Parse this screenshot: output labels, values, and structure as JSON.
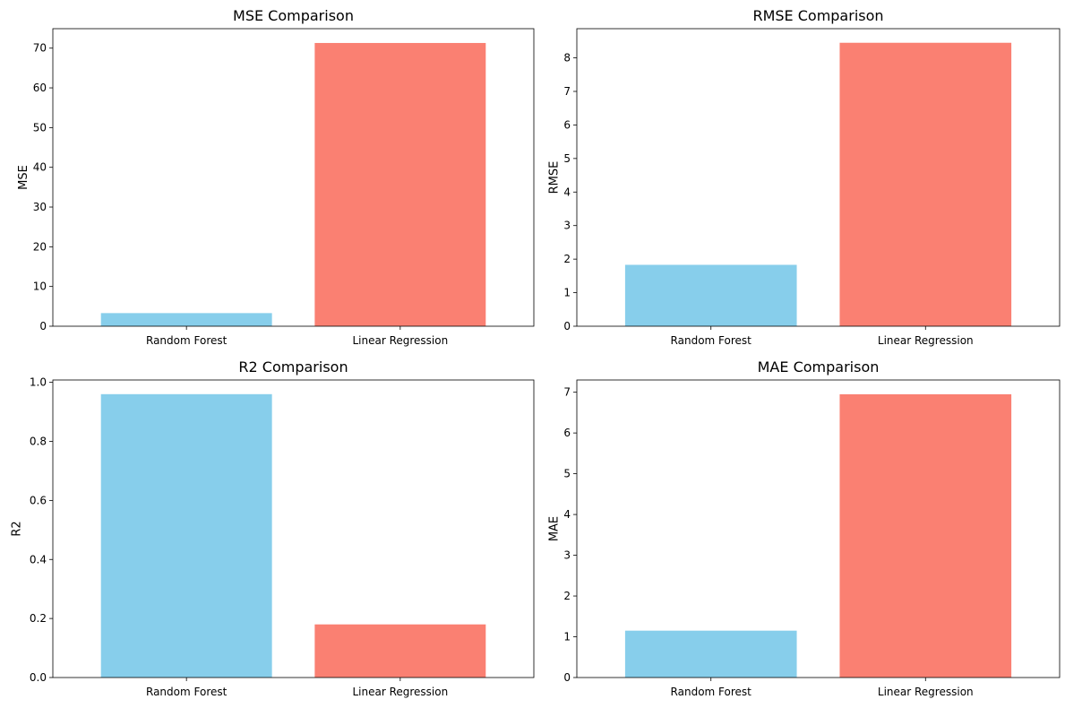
{
  "colors": {
    "random_forest": "#87CEEB",
    "linear_regression": "#FA8072"
  },
  "chart_data": [
    {
      "type": "bar",
      "title": "MSE Comparison",
      "xlabel": "",
      "ylabel": "MSE",
      "categories": [
        "Random Forest",
        "Linear Regression"
      ],
      "values": [
        3.3,
        71.3
      ],
      "ylim": [
        0,
        74.9
      ],
      "yticks": [
        0,
        10,
        20,
        30,
        40,
        50,
        60,
        70
      ],
      "grid": false
    },
    {
      "type": "bar",
      "title": "RMSE Comparison",
      "xlabel": "",
      "ylabel": "RMSE",
      "categories": [
        "Random Forest",
        "Linear Regression"
      ],
      "values": [
        1.83,
        8.45
      ],
      "ylim": [
        0,
        8.87
      ],
      "yticks": [
        0,
        1,
        2,
        3,
        4,
        5,
        6,
        7,
        8
      ],
      "grid": false
    },
    {
      "type": "bar",
      "title": "R2 Comparison",
      "xlabel": "",
      "ylabel": "R2",
      "categories": [
        "Random Forest",
        "Linear Regression"
      ],
      "values": [
        0.96,
        0.18
      ],
      "ylim": [
        0,
        1.008
      ],
      "yticks": [
        0.0,
        0.2,
        0.4,
        0.6,
        0.8,
        1.0
      ],
      "grid": false
    },
    {
      "type": "bar",
      "title": "MAE Comparison",
      "xlabel": "",
      "ylabel": "MAE",
      "categories": [
        "Random Forest",
        "Linear Regression"
      ],
      "values": [
        1.15,
        6.95
      ],
      "ylim": [
        0,
        7.3
      ],
      "yticks": [
        0,
        1,
        2,
        3,
        4,
        5,
        6,
        7
      ],
      "grid": false
    }
  ]
}
